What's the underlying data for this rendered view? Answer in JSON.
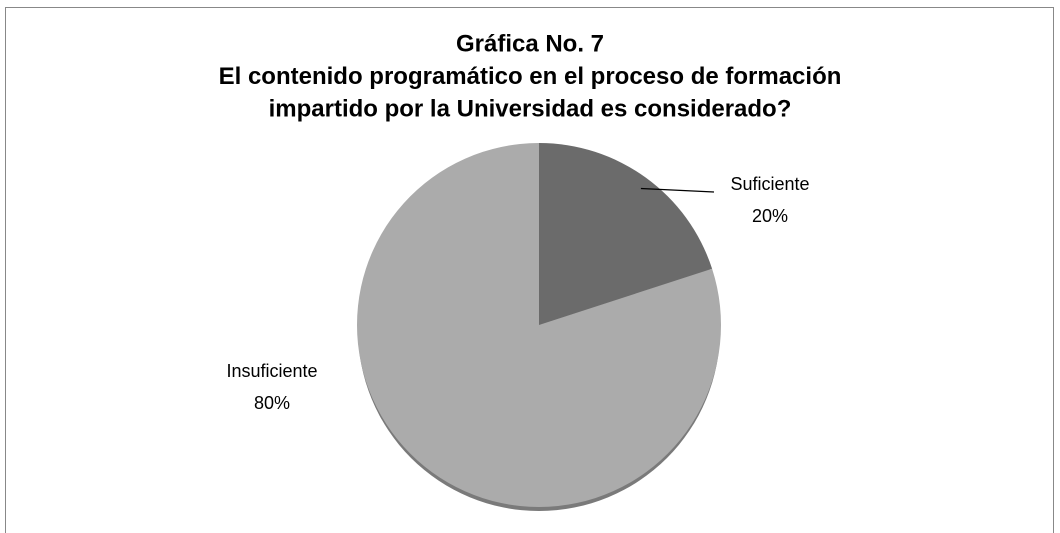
{
  "chart_data": {
    "type": "pie",
    "title": [
      "Gráfica No. 7",
      "El contenido programático en el proceso de formación",
      "impartido por la Universidad es considerado?"
    ],
    "categories": [
      "Suficiente",
      "Insuficiente"
    ],
    "values": [
      20,
      80
    ],
    "value_labels": [
      "20%",
      "80%"
    ],
    "colors": [
      "#6b6b6b",
      "#ababab"
    ]
  }
}
